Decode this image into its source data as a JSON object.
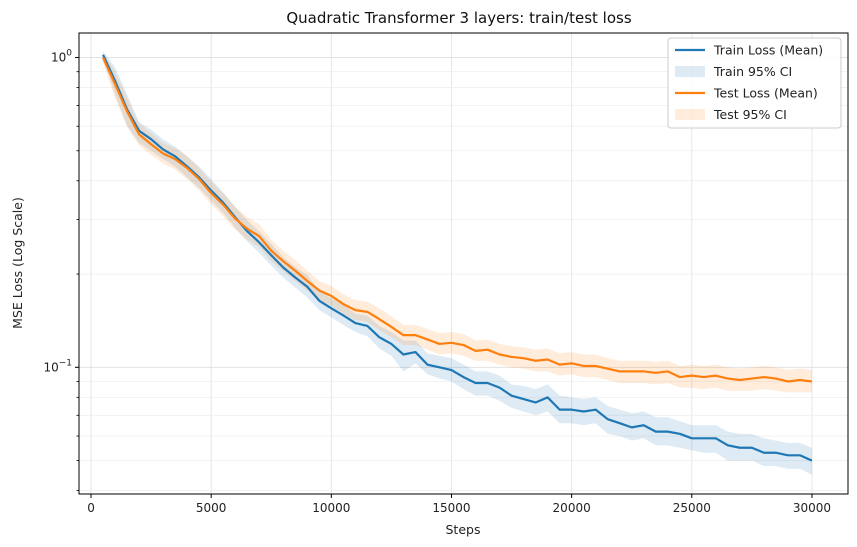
{
  "chart_data": {
    "type": "line",
    "title": "Quadratic Transformer 3 layers: train/test loss",
    "xlabel": "Steps",
    "ylabel": "MSE Loss (Log Scale)",
    "yscale": "log",
    "xlim": [
      -500,
      31500
    ],
    "ylim": [
      0.039,
      1.2
    ],
    "x_ticks": [
      0,
      5000,
      10000,
      15000,
      20000,
      25000,
      30000
    ],
    "x_tick_labels": [
      "0",
      "5000",
      "10000",
      "15000",
      "20000",
      "25000",
      "30000"
    ],
    "y_major_ticks": [
      1.0,
      0.1
    ],
    "y_tick_labels": [
      "10^0",
      "10^-1"
    ],
    "y_minor_ticks": [
      0.04,
      0.05,
      0.06,
      0.07,
      0.08,
      0.09,
      0.2,
      0.3,
      0.4,
      0.5,
      0.6,
      0.7,
      0.8,
      0.9
    ],
    "grid": true,
    "legend_position": "top-right",
    "x": [
      500,
      1000,
      1500,
      2000,
      2500,
      3000,
      3500,
      4000,
      4500,
      5000,
      5500,
      6000,
      6500,
      7000,
      7500,
      8000,
      8500,
      9000,
      9500,
      10000,
      10500,
      11000,
      11500,
      12000,
      12500,
      13000,
      13500,
      14000,
      14500,
      15000,
      15500,
      16000,
      16500,
      17000,
      17500,
      18000,
      18500,
      19000,
      19500,
      20000,
      20500,
      21000,
      21500,
      22000,
      22500,
      23000,
      23500,
      24000,
      24500,
      25000,
      25500,
      26000,
      26500,
      27000,
      27500,
      28000,
      28500,
      29000,
      29500,
      30000
    ],
    "series": [
      {
        "name": "Train Loss (Mean)",
        "band_name": "Train 95% CI",
        "color": "#1f77b4",
        "values": [
          1.02,
          0.84,
          0.68,
          0.58,
          0.545,
          0.505,
          0.48,
          0.445,
          0.41,
          0.372,
          0.34,
          0.305,
          0.275,
          0.253,
          0.23,
          0.21,
          0.195,
          0.182,
          0.164,
          0.155,
          0.147,
          0.139,
          0.136,
          0.125,
          0.119,
          0.11,
          0.112,
          0.102,
          0.1,
          0.098,
          0.093,
          0.089,
          0.089,
          0.086,
          0.081,
          0.079,
          0.077,
          0.08,
          0.073,
          0.073,
          0.072,
          0.073,
          0.068,
          0.066,
          0.064,
          0.065,
          0.062,
          0.062,
          0.061,
          0.059,
          0.059,
          0.059,
          0.056,
          0.055,
          0.055,
          0.053,
          0.053,
          0.052,
          0.052,
          0.05
        ],
        "lower": [
          0.99,
          0.76,
          0.6,
          0.53,
          0.5,
          0.47,
          0.445,
          0.41,
          0.378,
          0.345,
          0.315,
          0.282,
          0.255,
          0.234,
          0.213,
          0.195,
          0.181,
          0.168,
          0.153,
          0.145,
          0.137,
          0.13,
          0.126,
          0.115,
          0.109,
          0.097,
          0.103,
          0.095,
          0.092,
          0.09,
          0.085,
          0.081,
          0.081,
          0.078,
          0.074,
          0.072,
          0.07,
          0.072,
          0.066,
          0.066,
          0.065,
          0.066,
          0.061,
          0.06,
          0.058,
          0.059,
          0.056,
          0.056,
          0.055,
          0.054,
          0.053,
          0.053,
          0.05,
          0.05,
          0.05,
          0.048,
          0.048,
          0.047,
          0.047,
          0.045
        ],
        "upper": [
          1.05,
          0.93,
          0.76,
          0.62,
          0.585,
          0.545,
          0.515,
          0.48,
          0.445,
          0.405,
          0.367,
          0.33,
          0.298,
          0.275,
          0.25,
          0.227,
          0.211,
          0.198,
          0.177,
          0.167,
          0.159,
          0.149,
          0.147,
          0.136,
          0.13,
          0.122,
          0.122,
          0.111,
          0.109,
          0.107,
          0.102,
          0.097,
          0.097,
          0.094,
          0.088,
          0.087,
          0.085,
          0.088,
          0.081,
          0.08,
          0.079,
          0.08,
          0.075,
          0.073,
          0.071,
          0.072,
          0.069,
          0.069,
          0.067,
          0.065,
          0.065,
          0.065,
          0.062,
          0.061,
          0.061,
          0.059,
          0.058,
          0.057,
          0.057,
          0.055
        ]
      },
      {
        "name": "Test Loss (Mean)",
        "band_name": "Test 95% CI",
        "color": "#ff7f0e",
        "values": [
          1.0,
          0.82,
          0.67,
          0.565,
          0.525,
          0.49,
          0.47,
          0.44,
          0.405,
          0.365,
          0.335,
          0.302,
          0.28,
          0.265,
          0.238,
          0.22,
          0.205,
          0.19,
          0.177,
          0.17,
          0.16,
          0.153,
          0.151,
          0.143,
          0.135,
          0.127,
          0.127,
          0.123,
          0.119,
          0.12,
          0.118,
          0.113,
          0.114,
          0.11,
          0.108,
          0.107,
          0.105,
          0.106,
          0.102,
          0.103,
          0.101,
          0.101,
          0.099,
          0.097,
          0.097,
          0.097,
          0.096,
          0.097,
          0.093,
          0.094,
          0.093,
          0.094,
          0.092,
          0.091,
          0.092,
          0.093,
          0.092,
          0.09,
          0.091,
          0.09
        ],
        "lower": [
          0.96,
          0.74,
          0.6,
          0.52,
          0.485,
          0.455,
          0.435,
          0.405,
          0.372,
          0.335,
          0.307,
          0.278,
          0.258,
          0.244,
          0.22,
          0.204,
          0.19,
          0.177,
          0.165,
          0.158,
          0.149,
          0.142,
          0.14,
          0.132,
          0.125,
          0.118,
          0.118,
          0.114,
          0.11,
          0.111,
          0.109,
          0.105,
          0.105,
          0.102,
          0.1,
          0.099,
          0.097,
          0.097,
          0.094,
          0.095,
          0.093,
          0.093,
          0.091,
          0.089,
          0.089,
          0.089,
          0.088,
          0.089,
          0.086,
          0.086,
          0.085,
          0.086,
          0.084,
          0.084,
          0.084,
          0.085,
          0.084,
          0.083,
          0.083,
          0.083
        ],
        "upper": [
          1.04,
          0.9,
          0.74,
          0.61,
          0.57,
          0.53,
          0.51,
          0.48,
          0.44,
          0.398,
          0.365,
          0.33,
          0.305,
          0.29,
          0.258,
          0.238,
          0.222,
          0.205,
          0.19,
          0.183,
          0.172,
          0.165,
          0.163,
          0.155,
          0.146,
          0.137,
          0.137,
          0.133,
          0.129,
          0.13,
          0.128,
          0.122,
          0.123,
          0.119,
          0.117,
          0.116,
          0.114,
          0.115,
          0.111,
          0.112,
          0.11,
          0.11,
          0.107,
          0.105,
          0.105,
          0.105,
          0.104,
          0.105,
          0.101,
          0.102,
          0.101,
          0.102,
          0.1,
          0.099,
          0.1,
          0.101,
          0.1,
          0.098,
          0.099,
          0.098
        ]
      }
    ]
  }
}
